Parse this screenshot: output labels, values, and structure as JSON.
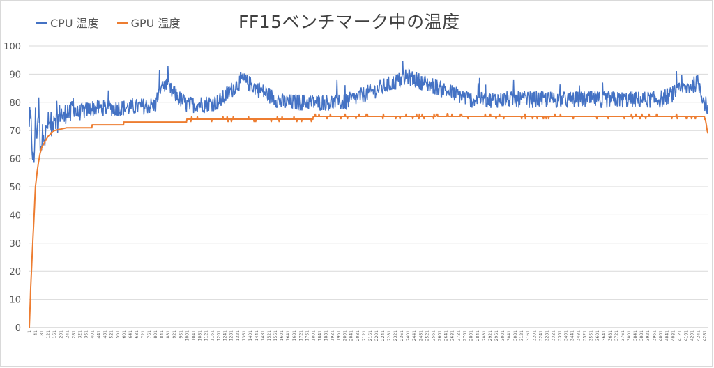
{
  "chart_data": {
    "type": "line",
    "title": "FF15ベンチマーク中の温度",
    "xlabel": "",
    "ylabel": "",
    "ylim": [
      0,
      100
    ],
    "yticks": [
      0,
      10,
      20,
      30,
      40,
      50,
      60,
      70,
      80,
      90,
      100
    ],
    "x_range": [
      1,
      4300
    ],
    "x_tick_step": 40,
    "grid": true,
    "legend_position": "top-left",
    "series": [
      {
        "name": "CPU 温度",
        "color": "#4472C4",
        "description_points": [
          [
            1,
            70
          ],
          [
            10,
            74
          ],
          [
            20,
            63
          ],
          [
            30,
            57
          ],
          [
            40,
            75
          ],
          [
            50,
            68
          ],
          [
            60,
            80
          ],
          [
            70,
            66
          ],
          [
            80,
            65
          ],
          [
            90,
            72
          ],
          [
            100,
            67
          ],
          [
            120,
            73
          ],
          [
            140,
            70
          ],
          [
            160,
            76
          ],
          [
            180,
            73
          ],
          [
            200,
            77
          ],
          [
            220,
            74
          ],
          [
            240,
            78
          ],
          [
            260,
            75
          ],
          [
            280,
            80
          ],
          [
            300,
            76
          ],
          [
            400,
            78
          ],
          [
            600,
            78
          ],
          [
            800,
            79
          ],
          [
            840,
            87
          ],
          [
            1000,
            79
          ],
          [
            1200,
            80
          ],
          [
            1350,
            88
          ],
          [
            1600,
            80
          ],
          [
            2000,
            80
          ],
          [
            2400,
            89
          ],
          [
            2800,
            81
          ],
          [
            3200,
            81
          ],
          [
            3600,
            81
          ],
          [
            4000,
            81
          ],
          [
            4240,
            87
          ],
          [
            4280,
            80
          ],
          [
            4300,
            78
          ]
        ],
        "noise_amplitude": 3
      },
      {
        "name": "GPU 温度",
        "color": "#ED7D31",
        "values_points": [
          [
            1,
            0
          ],
          [
            10,
            14
          ],
          [
            20,
            27
          ],
          [
            30,
            38
          ],
          [
            40,
            50
          ],
          [
            50,
            55
          ],
          [
            60,
            59
          ],
          [
            70,
            62
          ],
          [
            80,
            64
          ],
          [
            100,
            66
          ],
          [
            120,
            68
          ],
          [
            160,
            70
          ],
          [
            240,
            71
          ],
          [
            360,
            71
          ],
          [
            440,
            72
          ],
          [
            600,
            72.5
          ],
          [
            700,
            73
          ],
          [
            1000,
            73.5
          ],
          [
            1300,
            74
          ],
          [
            1800,
            74.5
          ],
          [
            2000,
            75
          ],
          [
            3000,
            75
          ],
          [
            4000,
            75
          ],
          [
            4200,
            75
          ],
          [
            4280,
            75
          ],
          [
            4300,
            69
          ]
        ]
      }
    ]
  }
}
